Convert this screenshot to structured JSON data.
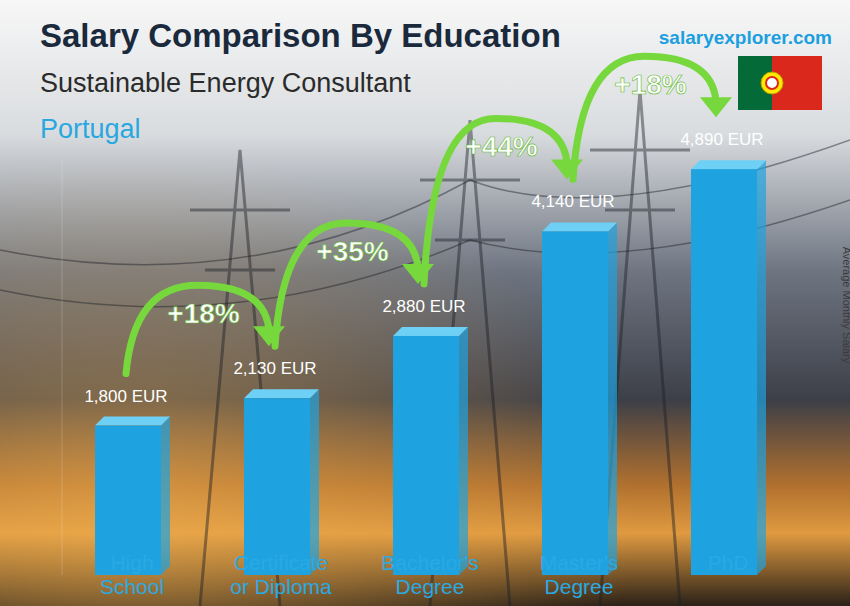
{
  "chart_data": {
    "type": "bar",
    "title": "Salary Comparison By Education",
    "subtitle": "Sustainable Energy Consultant",
    "location": "Portugal",
    "source": "salaryexplorer.com",
    "ylabel": "Average Monthly Salary",
    "categories": [
      "High School",
      "Certificate or Diploma",
      "Bachelor's Degree",
      "Master's Degree",
      "PhD"
    ],
    "values": [
      1800,
      2130,
      2880,
      4140,
      4890
    ],
    "value_labels": [
      "1,800 EUR",
      "2,130 EUR",
      "2,880 EUR",
      "4,140 EUR",
      "4,890 EUR"
    ],
    "annotations": [
      "+18%",
      "+35%",
      "+44%",
      "+18%"
    ],
    "color": "#1ea3e0",
    "ylim": [
      0,
      5000
    ],
    "yticks": [],
    "data_labels": true,
    "tick_labels": "x",
    "grid": false
  }
}
